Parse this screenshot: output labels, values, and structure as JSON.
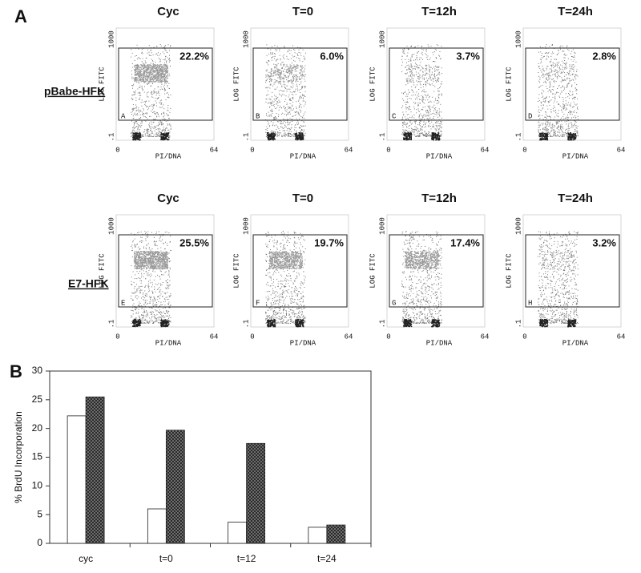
{
  "panel_labels": [
    "A",
    "B"
  ],
  "panel_a": {
    "rows": [
      "pBabe-HFK",
      "E7-HFK"
    ],
    "columns": [
      "Cyc",
      "T=0",
      "T=12h",
      "T=24h"
    ],
    "y_label": "LOG FITC",
    "x_label": "PI/DNA",
    "y_tick_labels": [
      "1000",
      ".1"
    ],
    "x_tick_labels": [
      "0",
      "64"
    ],
    "plots": [
      {
        "letter": "A",
        "percent": "22.2%"
      },
      {
        "letter": "B",
        "percent": "6.0%"
      },
      {
        "letter": "C",
        "percent": "3.7%"
      },
      {
        "letter": "D",
        "percent": "2.8%"
      },
      {
        "letter": "E",
        "percent": "25.5%"
      },
      {
        "letter": "F",
        "percent": "19.7%"
      },
      {
        "letter": "G",
        "percent": "17.4%"
      },
      {
        "letter": "H",
        "percent": "3.2%"
      }
    ]
  },
  "chart_data": {
    "type": "bar",
    "ylabel": "% BrdU Incorporation",
    "categories": [
      "cyc",
      "t=0",
      "t=12",
      "t=24"
    ],
    "series": [
      {
        "color": "#ffffff",
        "values": [
          22.2,
          6.0,
          3.7,
          2.8
        ]
      },
      {
        "color": "#555555",
        "pattern": "crosshatch",
        "values": [
          25.5,
          19.7,
          17.4,
          3.2
        ]
      }
    ],
    "ylim": [
      0,
      30
    ],
    "yticks": [
      0,
      5,
      10,
      15,
      20,
      25,
      30
    ],
    "grid": false
  }
}
